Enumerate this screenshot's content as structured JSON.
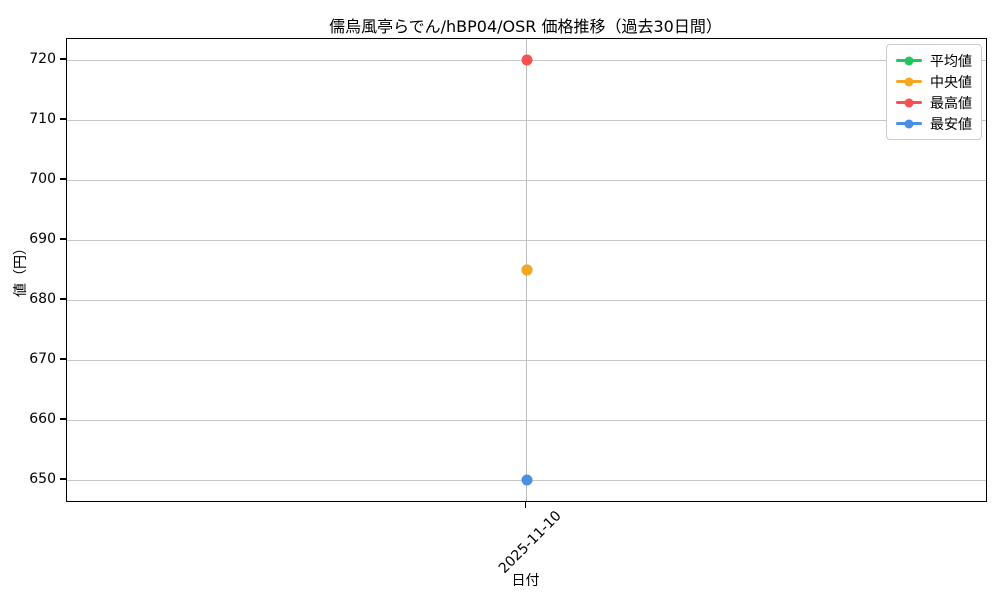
{
  "chart_data": {
    "type": "line",
    "title": "儒烏風亭らでん/hBP04/OSR 価格推移（過去30日間）",
    "xlabel": "日付",
    "ylabel": "値（円）",
    "x": [
      "2025-11-10"
    ],
    "series": [
      {
        "name": "平均値",
        "color": "#22c55e",
        "values": [
          685
        ]
      },
      {
        "name": "中央値",
        "color": "#f5a623",
        "values": [
          685
        ]
      },
      {
        "name": "最高値",
        "color": "#f94f4f",
        "values": [
          720
        ]
      },
      {
        "name": "最安値",
        "color": "#4a90e2",
        "values": [
          650
        ]
      }
    ],
    "yticks": [
      650,
      660,
      670,
      680,
      690,
      700,
      710,
      720
    ],
    "ylim": [
      646.5,
      723.5
    ],
    "grid": true,
    "legend_position": "upper right",
    "marker": "o",
    "colors": {
      "grid": "#c6c6c6",
      "axis": "#000000",
      "background": "#ffffff"
    }
  }
}
